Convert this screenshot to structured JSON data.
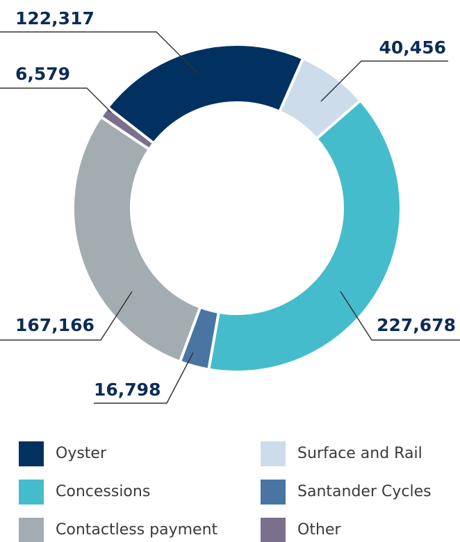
{
  "chart_data": {
    "type": "donut",
    "categories": [
      "Oyster",
      "Surface and Rail",
      "Concessions",
      "Santander Cycles",
      "Contactless payment",
      "Other"
    ],
    "values": [
      122317,
      40456,
      227678,
      16798,
      167166,
      6579
    ],
    "value_labels": [
      "122,317",
      "40,456",
      "227,678",
      "16,798",
      "167,166",
      "6,579"
    ],
    "colors": [
      "#003160",
      "#cddceb",
      "#44bccc",
      "#4a75a2",
      "#a3acb1",
      "#7b6f8e"
    ]
  }
}
